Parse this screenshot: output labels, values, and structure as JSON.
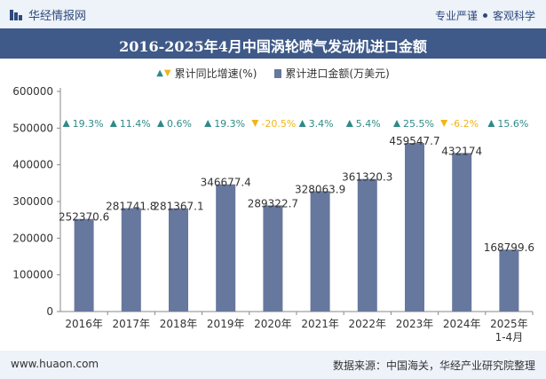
{
  "header": {
    "brand": "华经情报网",
    "tagline_left": "专业严谨",
    "tagline_right": "客观科学"
  },
  "chart_data": {
    "type": "bar",
    "title": "2016-2025年4月中国涡轮喷气发动机进口金额",
    "categories": [
      "2016年",
      "2017年",
      "2018年",
      "2019年",
      "2020年",
      "2021年",
      "2022年",
      "2023年",
      "2024年",
      "2025年1-4月"
    ],
    "category_lines": [
      [
        "2016年"
      ],
      [
        "2017年"
      ],
      [
        "2018年"
      ],
      [
        "2019年"
      ],
      [
        "2020年"
      ],
      [
        "2021年"
      ],
      [
        "2022年"
      ],
      [
        "2023年"
      ],
      [
        "2024年"
      ],
      [
        "2025年",
        "1-4月"
      ]
    ],
    "series": [
      {
        "name": "累计进口金额(万美元)",
        "values": [
          252370.6,
          281741.8,
          281367.1,
          346677.4,
          289322.7,
          328063.9,
          361320.3,
          459547.7,
          432174,
          168799.6
        ],
        "labels": [
          "252370.6",
          "281741.8",
          "281367.1",
          "346677.4",
          "289322.7",
          "328063.9",
          "361320.3",
          "459547.7",
          "432174",
          "168799.6"
        ],
        "color": "#67789e"
      },
      {
        "name": "累计同比增速(%)",
        "values": [
          19.3,
          11.4,
          0.6,
          19.3,
          -20.5,
          3.4,
          5.4,
          25.5,
          -6.2,
          15.6
        ],
        "labels": [
          "19.3%",
          "11.4%",
          "0.6%",
          "19.3%",
          "-20.5%",
          "3.4%",
          "5.4%",
          "25.5%",
          "-6.2%",
          "15.6%"
        ],
        "up_color": "#2e8a88",
        "down_color": "#f2b515"
      }
    ],
    "yticks": [
      "0",
      "100000",
      "200000",
      "300000",
      "400000",
      "500000",
      "600000"
    ],
    "ylim": [
      0,
      600000
    ],
    "grid": false,
    "legend": "top-center"
  },
  "footer": {
    "website": "www.huaon.com",
    "source": "数据来源：中国海关，华经产业研究院整理"
  }
}
